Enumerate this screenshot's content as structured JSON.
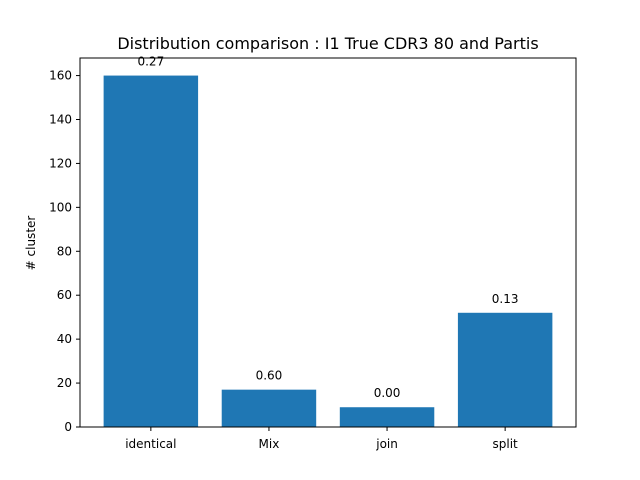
{
  "chart_data": {
    "type": "bar",
    "title": "Distribution comparison : I1 True CDR3 80 and Partis",
    "xlabel": "",
    "ylabel": "# cluster",
    "categories": [
      "identical",
      "Mix",
      "join",
      "split"
    ],
    "values": [
      160,
      17,
      9,
      52
    ],
    "bar_labels": [
      "0.27",
      "0.60",
      "0.00",
      "0.13"
    ],
    "ylim": [
      0,
      168
    ],
    "yticks": [
      0,
      20,
      40,
      60,
      80,
      100,
      120,
      140,
      160
    ],
    "grid": false,
    "bar_color": "#1f77b4"
  }
}
